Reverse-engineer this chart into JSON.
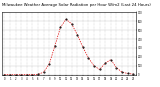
{
  "hours": [
    0,
    1,
    2,
    3,
    4,
    5,
    6,
    7,
    8,
    9,
    10,
    11,
    12,
    13,
    14,
    15,
    16,
    17,
    18,
    19,
    20,
    21,
    22,
    23
  ],
  "values": [
    2,
    1,
    1,
    1,
    2,
    3,
    5,
    30,
    120,
    320,
    530,
    620,
    570,
    450,
    310,
    190,
    100,
    60,
    130,
    170,
    80,
    30,
    15,
    8
  ],
  "line_color": "#dd0000",
  "grid_color": "#aaaaaa",
  "bg_color": "#ffffff",
  "title": "Milwaukee Weather Average Solar Radiation per Hour W/m2 (Last 24 Hours)",
  "title_fontsize": 2.8,
  "ylim": [
    0,
    700
  ],
  "xlim": [
    -0.5,
    23.5
  ],
  "yticks": [
    0,
    100,
    200,
    300,
    400,
    500,
    600,
    700
  ],
  "xtick_labels": [
    "0",
    "1",
    "2",
    "3",
    "4",
    "5",
    "6",
    "7",
    "8",
    "9",
    "10",
    "11",
    "12",
    "13",
    "14",
    "15",
    "16",
    "17",
    "18",
    "19",
    "20",
    "21",
    "22",
    "23"
  ]
}
